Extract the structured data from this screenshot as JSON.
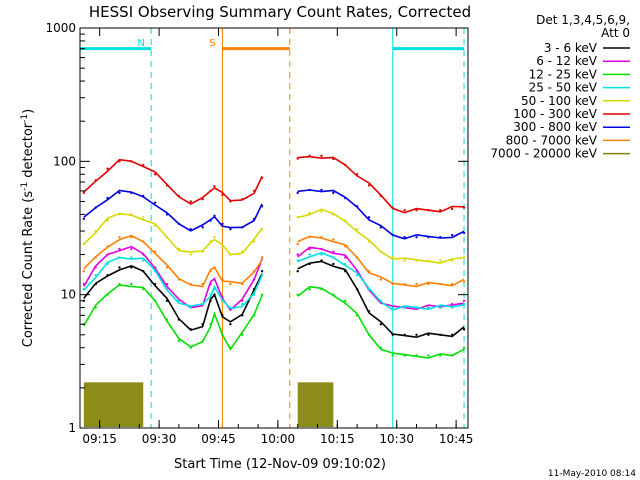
{
  "chart_data": {
    "type": "line",
    "title": "HESSI Observing Summary Count Rates, Corrected",
    "xlabel": "Start Time (12-Nov-09 09:10:02)",
    "ylabel": "Corrected Count Rate (s-1 detector-1)",
    "ylabel_parts": {
      "pre": "Corrected Count Rate (s",
      "sup1": "-1",
      "mid": " detector",
      "sup2": "-1",
      "post": ")"
    },
    "yscale": "log",
    "xlim": [
      "09:10:02",
      "10:48:00"
    ],
    "ylim": [
      1,
      1000
    ],
    "x_ticks": [
      "09:15",
      "09:30",
      "09:45",
      "10:00",
      "10:15",
      "10:30",
      "10:45"
    ],
    "y_ticks": [
      "1",
      "10",
      "100",
      "1000"
    ],
    "legend_position": "right",
    "legend_header": [
      "Det 1,3,4,5,6,9,",
      "Att 0"
    ],
    "timestamp": "11-May-2010 08:14",
    "x": [
      "09:11",
      "09:14",
      "09:17",
      "09:20",
      "09:23",
      "09:26",
      "09:29",
      "09:32",
      "09:35",
      "09:38",
      "09:41",
      "09:43",
      "09:44",
      "09:46",
      "09:48",
      "09:51",
      "09:54",
      "09:56",
      "10:05",
      "10:08",
      "10:11",
      "10:14",
      "10:17",
      "10:20",
      "10:23",
      "10:26",
      "10:29",
      "10:32",
      "10:35",
      "10:38",
      "10:41",
      "10:44",
      "10:47"
    ],
    "series": [
      {
        "name": "3 - 6 keV",
        "color": "#000000",
        "values": [
          9,
          12,
          14,
          16,
          16,
          15,
          12,
          9,
          6.5,
          5.5,
          6,
          9,
          10,
          7,
          6,
          7,
          11,
          15,
          15,
          17,
          18,
          17,
          15,
          11,
          7.5,
          6,
          5,
          5,
          5,
          5,
          5,
          5,
          5.5
        ],
        "gap_after": "09:56"
      },
      {
        "name": "6 - 12 keV",
        "color": "#e000e0",
        "values": [
          12,
          16,
          20,
          22,
          22,
          20,
          16,
          12,
          9,
          8,
          8.5,
          12,
          13,
          9.5,
          8,
          9,
          13,
          19,
          20,
          22,
          22,
          21,
          19,
          15,
          11,
          9,
          8,
          8,
          8,
          8,
          8,
          8.5,
          9
        ]
      },
      {
        "name": "12 - 25 keV",
        "color": "#00e000",
        "values": [
          6,
          8,
          10,
          12,
          12,
          11,
          9,
          6.5,
          4.5,
          4,
          4.5,
          6,
          7,
          5,
          4,
          5,
          7,
          10,
          10,
          11,
          11,
          10,
          9,
          7,
          5,
          4,
          3.5,
          3.5,
          3.5,
          3.5,
          3.5,
          3.5,
          4
        ]
      },
      {
        "name": "25 - 50 keV",
        "color": "#00e0e0",
        "values": [
          11,
          14,
          17,
          19,
          19,
          18,
          15,
          11,
          9,
          8,
          8.5,
          10,
          11,
          9,
          8,
          8.5,
          10,
          14,
          18,
          20,
          20,
          19,
          17,
          14,
          11,
          9,
          8,
          8,
          8,
          8,
          8,
          8,
          8.5
        ]
      },
      {
        "name": "50 - 100 keV",
        "color": "#d8d800",
        "values": [
          24,
          30,
          36,
          40,
          40,
          38,
          33,
          27,
          22,
          20,
          21,
          25,
          27,
          23,
          20,
          21,
          25,
          31,
          38,
          41,
          42,
          40,
          36,
          31,
          25,
          21,
          19,
          18,
          18,
          18,
          18,
          18,
          19
        ]
      },
      {
        "name": "100 - 300 keV",
        "color": "#e00000",
        "values": [
          58,
          72,
          88,
          100,
          100,
          94,
          80,
          66,
          55,
          50,
          52,
          60,
          65,
          56,
          50,
          52,
          60,
          75,
          105,
          110,
          110,
          104,
          94,
          80,
          66,
          55,
          45,
          43,
          43,
          43,
          43,
          44,
          45
        ]
      },
      {
        "name": "300 - 800 keV",
        "color": "#0000e0",
        "values": [
          37,
          45,
          53,
          58,
          58,
          55,
          49,
          40,
          34,
          31,
          32,
          36,
          39,
          34,
          31,
          32,
          37,
          46,
          58,
          61,
          61,
          58,
          53,
          46,
          38,
          32,
          28,
          27,
          27,
          27,
          27,
          28,
          29
        ]
      },
      {
        "name": "800 - 7000 keV",
        "color": "#ff8000",
        "values": [
          15,
          19,
          23,
          27,
          27,
          25,
          21,
          16,
          13,
          12,
          12,
          15,
          16,
          13,
          12,
          12,
          15,
          19,
          24,
          27,
          27,
          26,
          23,
          19,
          15,
          13,
          12,
          12,
          12,
          12,
          12,
          12,
          12.5
        ]
      },
      {
        "name": "7000 - 20000 keV",
        "color": "#808000",
        "values": [
          1.9,
          1.9,
          1.9,
          1.9,
          1.9,
          1.9,
          null,
          null,
          null,
          null,
          null,
          null,
          null,
          null,
          null,
          null,
          null,
          null,
          1.9,
          1.9,
          1.9,
          1.9,
          null,
          null,
          null,
          null,
          null,
          null,
          null,
          null,
          null,
          null,
          null
        ]
      }
    ],
    "annotations": [
      {
        "label": "N",
        "time": "09:28",
        "kind": "night",
        "color": "#00e0e0"
      },
      {
        "label": "S",
        "time": "09:46",
        "kind": "saa",
        "color": "#ff8000"
      }
    ],
    "orbit_flags": [
      {
        "kind": "night",
        "from": "09:10",
        "to": "09:28",
        "color": "#00e0e0"
      },
      {
        "kind": "saa",
        "from": "09:46",
        "to": "10:03",
        "color": "#ff8000"
      },
      {
        "kind": "night",
        "from": "10:29",
        "to": "10:47",
        "color": "#00e0e0"
      }
    ]
  }
}
